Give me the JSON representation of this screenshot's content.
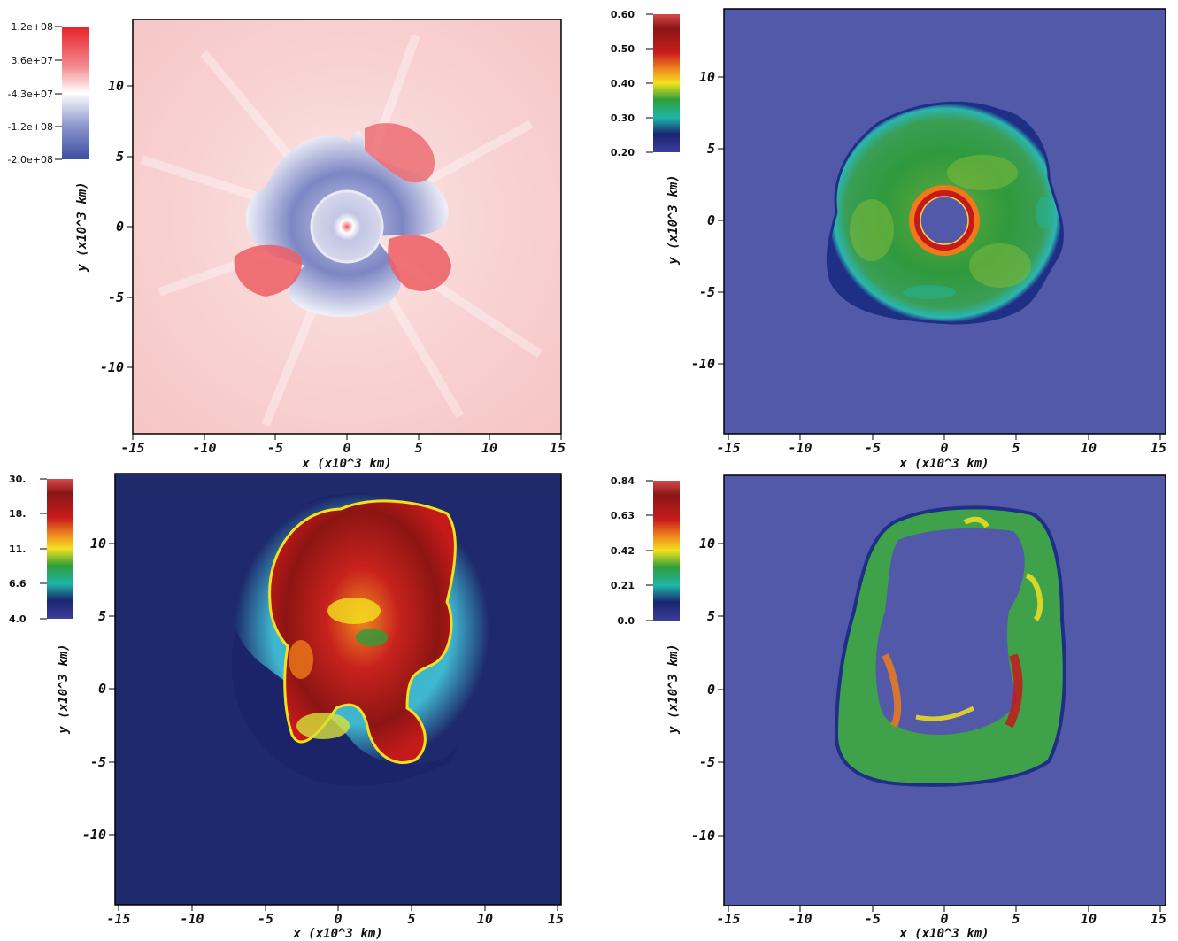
{
  "chart_data": [
    {
      "type": "heatmap",
      "panel": "top-left",
      "xlabel": "x (x10^3 km)",
      "ylabel": "y (x10^3 km)",
      "xlim": [
        -15,
        15
      ],
      "ylim": [
        -15,
        15
      ],
      "x_ticks": [
        "-15",
        "-10",
        "-5",
        "0",
        "5",
        "10",
        "15"
      ],
      "y_ticks": [
        "10",
        "5",
        "0",
        "-5",
        "-10"
      ],
      "colorbar": {
        "labels": [
          "1.2e+08",
          "3.6e+07",
          "-4.3e+07",
          "-1.2e+08",
          "-2.0e+08"
        ],
        "colors": [
          "#e8232a",
          "#f2888d",
          "#ffffff",
          "#8c95cc",
          "#3b4ea4"
        ]
      },
      "background_color": "#f8d3d3"
    },
    {
      "type": "heatmap",
      "panel": "top-right",
      "xlabel": "x (x10^3 km)",
      "ylabel": "y (x10^3 km)",
      "xlim": [
        -15,
        15
      ],
      "ylim": [
        -15,
        15
      ],
      "x_ticks": [
        "-15",
        "-10",
        "-5",
        "0",
        "5",
        "10",
        "15"
      ],
      "y_ticks": [
        "10",
        "5",
        "0",
        "-5",
        "-10"
      ],
      "colorbar": {
        "labels": [
          "0.60",
          "0.50",
          "0.40",
          "0.30",
          "0.20"
        ],
        "colors": [
          "#d63a3a",
          "#7a1414",
          "#c41a1a",
          "#f07a1a",
          "#f3e11f",
          "#2e9e3a",
          "#1fb5a8",
          "#1a2470",
          "#3c3e9c"
        ]
      },
      "background_color": "#5159a8"
    },
    {
      "type": "heatmap",
      "panel": "bottom-left",
      "xlabel": "x (x10^3 km)",
      "ylabel": "y (x10^3 km)",
      "xlim": [
        -15,
        15
      ],
      "ylim": [
        -15,
        15
      ],
      "x_ticks": [
        "-15",
        "-10",
        "-5",
        "0",
        "5",
        "10",
        "15"
      ],
      "y_ticks": [
        "10",
        "5",
        "0",
        "-5",
        "-10"
      ],
      "colorbar": {
        "labels": [
          "30.",
          "18.",
          "11.",
          "6.6",
          "4.0"
        ],
        "colors": [
          "#d63a3a",
          "#7a1414",
          "#c41a1a",
          "#f07a1a",
          "#f3e11f",
          "#2e9e3a",
          "#1fb5a8",
          "#1a2470",
          "#3c3e9c"
        ]
      },
      "background_color": "#1e2a6b"
    },
    {
      "type": "heatmap",
      "panel": "bottom-right",
      "xlabel": "x (x10^3 km)",
      "ylabel": "y (x10^3 km)",
      "xlim": [
        -15,
        15
      ],
      "ylim": [
        -15,
        15
      ],
      "x_ticks": [
        "-15",
        "-10",
        "-5",
        "0",
        "5",
        "10",
        "15"
      ],
      "y_ticks": [
        "10",
        "5",
        "0",
        "-5",
        "-10"
      ],
      "colorbar": {
        "labels": [
          "0.84",
          "0.63",
          "0.42",
          "0.21",
          "0.0"
        ],
        "colors": [
          "#d63a3a",
          "#7a1414",
          "#c41a1a",
          "#f07a1a",
          "#f3e11f",
          "#2e9e3a",
          "#1fb5a8",
          "#1a2470",
          "#3c3e9c"
        ]
      },
      "background_color": "#5159a8"
    }
  ]
}
